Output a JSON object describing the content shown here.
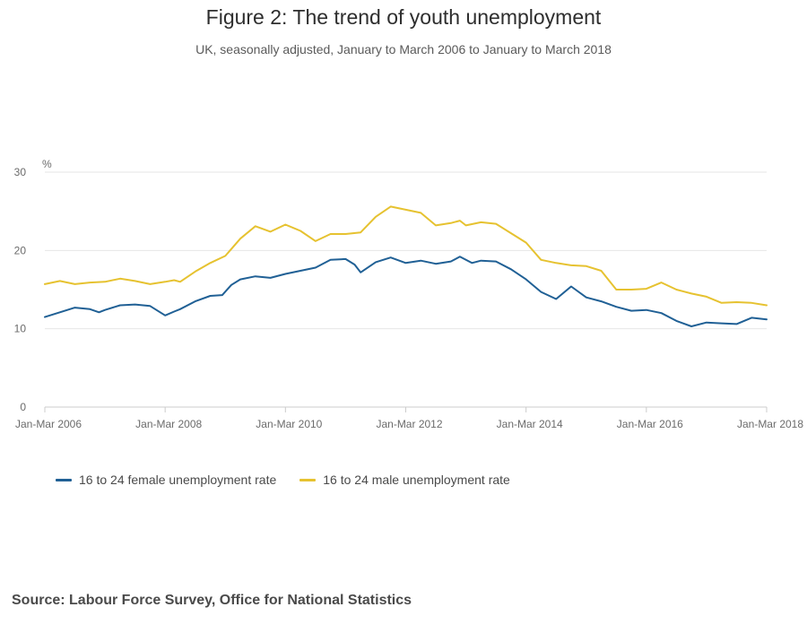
{
  "title": "Figure 2: The trend of youth unemployment",
  "subtitle": "UK, seasonally adjusted, January to March 2006 to January to March 2018",
  "source": "Source: Labour Force Survey, Office for National Statistics",
  "colors": {
    "female": "#206095",
    "male": "#e6c230",
    "grid": "#e6e6e6",
    "axis": "#cccccc"
  },
  "chart_data": {
    "type": "line",
    "title": "Figure 2: The trend of youth unemployment",
    "subtitle": "UK, seasonally adjusted, January to March 2006 to January to March 2018",
    "xlabel": "",
    "ylabel": "%",
    "ylim": [
      0,
      30
    ],
    "yticks": [
      0,
      10,
      20,
      30
    ],
    "xlim": [
      2006.0,
      2018.0
    ],
    "xticks": [
      {
        "x": 2006.0,
        "label": "Jan-Mar 2006"
      },
      {
        "x": 2008.0,
        "label": "Jan-Mar 2008"
      },
      {
        "x": 2010.0,
        "label": "Jan-Mar 2010"
      },
      {
        "x": 2012.0,
        "label": "Jan-Mar 2012"
      },
      {
        "x": 2014.0,
        "label": "Jan-Mar 2014"
      },
      {
        "x": 2016.0,
        "label": "Jan-Mar 2016"
      },
      {
        "x": 2018.0,
        "label": "Jan-Mar 2018"
      }
    ],
    "grid": true,
    "legend": "bottom-left",
    "series": [
      {
        "name": "16 to 24 female unemployment rate",
        "color": "#206095",
        "points": [
          [
            2006.0,
            11.5
          ],
          [
            2006.25,
            12.1
          ],
          [
            2006.5,
            12.7
          ],
          [
            2006.75,
            12.5
          ],
          [
            2006.9,
            12.1
          ],
          [
            2007.0,
            12.4
          ],
          [
            2007.25,
            13.0
          ],
          [
            2007.5,
            13.1
          ],
          [
            2007.75,
            12.9
          ],
          [
            2008.0,
            11.7
          ],
          [
            2008.15,
            12.2
          ],
          [
            2008.25,
            12.5
          ],
          [
            2008.5,
            13.5
          ],
          [
            2008.75,
            14.2
          ],
          [
            2008.95,
            14.3
          ],
          [
            2009.1,
            15.6
          ],
          [
            2009.25,
            16.3
          ],
          [
            2009.5,
            16.7
          ],
          [
            2009.75,
            16.5
          ],
          [
            2010.0,
            17.0
          ],
          [
            2010.25,
            17.4
          ],
          [
            2010.5,
            17.8
          ],
          [
            2010.75,
            18.8
          ],
          [
            2011.0,
            18.9
          ],
          [
            2011.15,
            18.2
          ],
          [
            2011.25,
            17.2
          ],
          [
            2011.5,
            18.5
          ],
          [
            2011.75,
            19.1
          ],
          [
            2012.0,
            18.4
          ],
          [
            2012.25,
            18.7
          ],
          [
            2012.5,
            18.3
          ],
          [
            2012.75,
            18.6
          ],
          [
            2012.9,
            19.2
          ],
          [
            2013.1,
            18.4
          ],
          [
            2013.25,
            18.7
          ],
          [
            2013.5,
            18.6
          ],
          [
            2013.75,
            17.6
          ],
          [
            2014.0,
            16.3
          ],
          [
            2014.25,
            14.7
          ],
          [
            2014.5,
            13.8
          ],
          [
            2014.75,
            15.4
          ],
          [
            2015.0,
            14.0
          ],
          [
            2015.25,
            13.5
          ],
          [
            2015.5,
            12.8
          ],
          [
            2015.75,
            12.3
          ],
          [
            2016.0,
            12.4
          ],
          [
            2016.25,
            12.0
          ],
          [
            2016.5,
            11.0
          ],
          [
            2016.75,
            10.3
          ],
          [
            2017.0,
            10.8
          ],
          [
            2017.25,
            10.7
          ],
          [
            2017.5,
            10.6
          ],
          [
            2017.75,
            11.4
          ],
          [
            2018.0,
            11.2
          ]
        ]
      },
      {
        "name": "16 to 24 male unemployment rate",
        "color": "#e6c230",
        "points": [
          [
            2006.0,
            15.7
          ],
          [
            2006.25,
            16.1
          ],
          [
            2006.5,
            15.7
          ],
          [
            2006.75,
            15.9
          ],
          [
            2007.0,
            16.0
          ],
          [
            2007.25,
            16.4
          ],
          [
            2007.5,
            16.1
          ],
          [
            2007.75,
            15.7
          ],
          [
            2008.0,
            16.0
          ],
          [
            2008.15,
            16.2
          ],
          [
            2008.25,
            16.0
          ],
          [
            2008.5,
            17.3
          ],
          [
            2008.75,
            18.4
          ],
          [
            2009.0,
            19.3
          ],
          [
            2009.25,
            21.5
          ],
          [
            2009.5,
            23.1
          ],
          [
            2009.75,
            22.4
          ],
          [
            2010.0,
            23.3
          ],
          [
            2010.25,
            22.5
          ],
          [
            2010.5,
            21.2
          ],
          [
            2010.75,
            22.1
          ],
          [
            2011.0,
            22.1
          ],
          [
            2011.25,
            22.3
          ],
          [
            2011.5,
            24.3
          ],
          [
            2011.75,
            25.6
          ],
          [
            2012.0,
            25.2
          ],
          [
            2012.25,
            24.8
          ],
          [
            2012.5,
            23.2
          ],
          [
            2012.75,
            23.5
          ],
          [
            2012.9,
            23.8
          ],
          [
            2013.0,
            23.2
          ],
          [
            2013.25,
            23.6
          ],
          [
            2013.5,
            23.4
          ],
          [
            2013.75,
            22.2
          ],
          [
            2014.0,
            21.0
          ],
          [
            2014.25,
            18.8
          ],
          [
            2014.5,
            18.4
          ],
          [
            2014.75,
            18.1
          ],
          [
            2015.0,
            18.0
          ],
          [
            2015.25,
            17.4
          ],
          [
            2015.5,
            15.0
          ],
          [
            2015.75,
            15.0
          ],
          [
            2016.0,
            15.1
          ],
          [
            2016.25,
            15.9
          ],
          [
            2016.5,
            15.0
          ],
          [
            2016.75,
            14.5
          ],
          [
            2017.0,
            14.1
          ],
          [
            2017.25,
            13.3
          ],
          [
            2017.5,
            13.4
          ],
          [
            2017.75,
            13.3
          ],
          [
            2018.0,
            13.0
          ]
        ]
      }
    ]
  }
}
